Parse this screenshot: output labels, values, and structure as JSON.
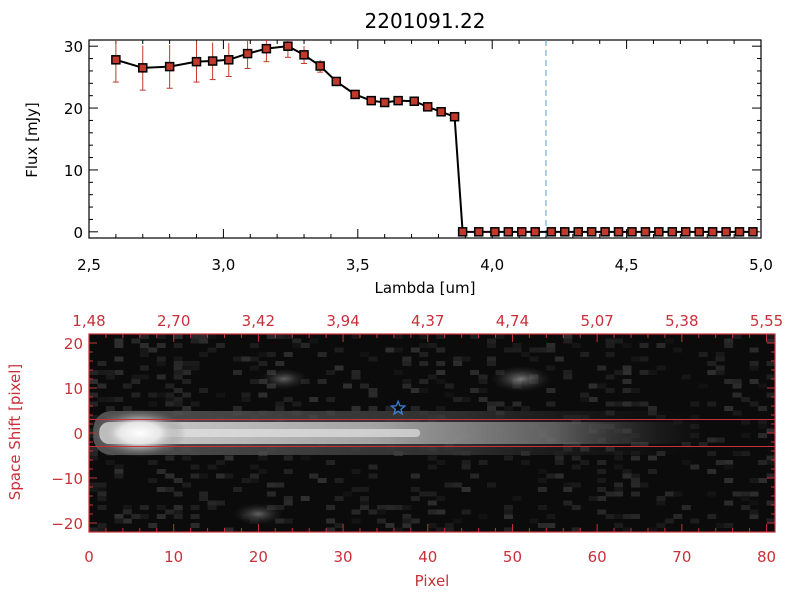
{
  "chart_data": [
    {
      "type": "line",
      "title": "2201091.22",
      "xlabel": "Lambda [um]",
      "ylabel": "Flux [mJy]",
      "xlim": [
        2.5,
        5.0
      ],
      "ylim": [
        -1,
        31
      ],
      "x_ticks": [
        2.5,
        3.0,
        3.5,
        4.0,
        4.5,
        5.0
      ],
      "x_tick_labels": [
        "2,5",
        "3,0",
        "3,5",
        "4,0",
        "4,5",
        "5,0"
      ],
      "y_ticks": [
        0,
        10,
        20,
        30
      ],
      "y_tick_labels": [
        "0",
        "10",
        "20",
        "30"
      ],
      "grid": false,
      "reference_line": {
        "x": 4.2,
        "style": "dashed",
        "color": "#4f9fd6"
      },
      "line_color": "#000000",
      "marker_color": "#c0392b",
      "series": [
        {
          "x": [
            2.6,
            2.7,
            2.8,
            2.9,
            2.96,
            3.02,
            3.09,
            3.16,
            3.24,
            3.3,
            3.36,
            3.42,
            3.49,
            3.55,
            3.6,
            3.65,
            3.71,
            3.76,
            3.81,
            3.86,
            3.89,
            3.95,
            4.01,
            4.06,
            4.11,
            4.16,
            4.22,
            4.27,
            4.32,
            4.37,
            4.42,
            4.47,
            4.52,
            4.57,
            4.62,
            4.67,
            4.72,
            4.77,
            4.82,
            4.87,
            4.92,
            4.97
          ],
          "y": [
            27.8,
            26.5,
            26.7,
            27.5,
            27.6,
            27.8,
            28.8,
            29.6,
            30.0,
            28.6,
            26.8,
            24.3,
            22.2,
            21.2,
            20.9,
            21.2,
            21.1,
            20.2,
            19.4,
            18.6,
            0,
            0,
            0,
            0,
            0,
            0,
            0,
            0,
            0,
            0,
            0,
            0,
            0,
            0,
            0,
            0,
            0,
            0,
            0,
            0,
            0,
            0
          ],
          "yerr": [
            3.6,
            3.6,
            3.5,
            3.3,
            3.0,
            2.7,
            2.4,
            2.1,
            1.8,
            1.4,
            1.0,
            0.5,
            0.4,
            0.3,
            0.3,
            0.3,
            0.3,
            0.3,
            0.3,
            0.3,
            0,
            0,
            0,
            0,
            0,
            0,
            0,
            0,
            0,
            0,
            0,
            0,
            0,
            0,
            0,
            0,
            0,
            0,
            0,
            0,
            0,
            0
          ]
        }
      ]
    },
    {
      "type": "heatmap",
      "xlabel": "Pixel",
      "ylabel": "Space Shift [pixel]",
      "xlim": [
        0,
        81
      ],
      "ylim": [
        -22,
        22
      ],
      "x_ticks": [
        0,
        10,
        20,
        30,
        40,
        50,
        60,
        70,
        80
      ],
      "x_tick_labels": [
        "0",
        "10",
        "20",
        "30",
        "40",
        "50",
        "60",
        "70",
        "80"
      ],
      "y_ticks": [
        -20,
        -10,
        0,
        10,
        20
      ],
      "y_tick_labels": [
        "−20",
        "−10",
        "0",
        "10",
        "20"
      ],
      "top_axis_labels": [
        "1,48",
        "2,70",
        "3,42",
        "3,94",
        "4,37",
        "4,74",
        "5,07",
        "5,38",
        "5,55"
      ],
      "extraction_lines_y": [
        3,
        -3
      ],
      "source_marker": {
        "x": 36.5,
        "y": 5.5,
        "shape": "star",
        "color": "#3a7fd5"
      },
      "trace": {
        "center_y": 0,
        "peak_x": 6,
        "fade_end_x": 73
      },
      "blobs": [
        {
          "x": 51,
          "y": 12,
          "intensity": 0.35
        },
        {
          "x": 23,
          "y": 12,
          "intensity": 0.15
        },
        {
          "x": 20,
          "y": -18,
          "intensity": 0.18
        }
      ],
      "axis_color": "#c8303a"
    }
  ]
}
